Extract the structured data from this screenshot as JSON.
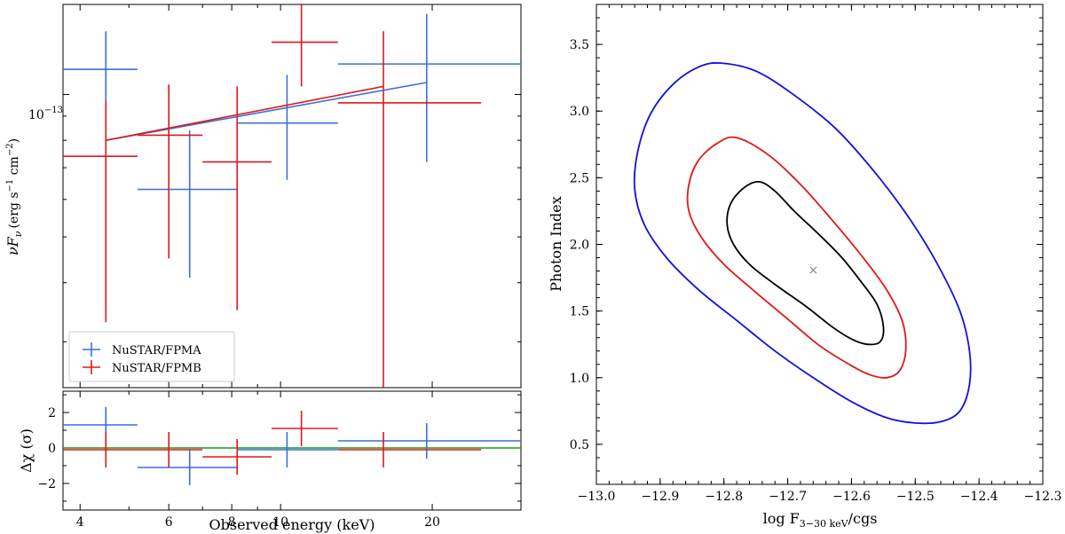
{
  "colors": {
    "fpma": "#3a6fd8",
    "fpmb": "#e01818",
    "model": "#9a2a4a",
    "zero_line": "#1a9a1a",
    "contour_inner": "#000000",
    "contour_mid": "#e01818",
    "contour_outer": "#1010e0",
    "best_fit": "#888888"
  },
  "chart_data": [
    {
      "type": "scatter",
      "panel": "spectrum",
      "title": "",
      "xscale": "log",
      "yscale": "log",
      "xlim": [
        3.7,
        30
      ],
      "ylim": [
        2.4e-14,
        1.55e-13
      ],
      "x_ticks": [
        4,
        6,
        8,
        10,
        20
      ],
      "x_tick_labels": [
        "",
        "",
        "",
        "",
        ""
      ],
      "y_ticks": [
        1e-13
      ],
      "y_tick_labels": [
        "10",
        "−13"
      ],
      "ylabel": "νF",
      "ylabel_sub": "ν",
      "ylabel_units": "(erg s",
      "ylabel_sup1": "−1",
      "ylabel_mid": " cm",
      "ylabel_sup2": "−2",
      "ylabel_end": ")",
      "legend_position": "lower-left",
      "series": [
        {
          "name": "NuSTAR/FPMA",
          "color_key": "fpma",
          "points": [
            {
              "x": 4.5,
              "xlo": 3.7,
              "xhi": 5.2,
              "y": 1.13e-13,
              "ylo": 9.7e-14,
              "yhi": 1.36e-13
            },
            {
              "x": 6.6,
              "xlo": 5.2,
              "xhi": 8.2,
              "y": 6.3e-14,
              "ylo": 4.1e-14,
              "yhi": 8.4e-14
            },
            {
              "x": 10.3,
              "xlo": 8.2,
              "xhi": 13.0,
              "y": 8.7e-14,
              "ylo": 6.6e-14,
              "yhi": 1.1e-13
            },
            {
              "x": 19.5,
              "xlo": 13.0,
              "xhi": 30.0,
              "y": 1.16e-13,
              "ylo": 7.2e-14,
              "yhi": 1.48e-13
            }
          ]
        },
        {
          "name": "NuSTAR/FPMB",
          "color_key": "fpmb",
          "points": [
            {
              "x": 4.5,
              "xlo": 3.7,
              "xhi": 5.2,
              "y": 7.4e-14,
              "ylo": 3.3e-14,
              "yhi": 9.7e-14
            },
            {
              "x": 6.0,
              "xlo": 5.2,
              "xhi": 7.0,
              "y": 8.2e-14,
              "ylo": 4.5e-14,
              "yhi": 1.05e-13
            },
            {
              "x": 8.2,
              "xlo": 7.0,
              "xhi": 9.6,
              "y": 7.2e-14,
              "ylo": 3.5e-14,
              "yhi": 1.04e-13
            },
            {
              "x": 11.0,
              "xlo": 9.6,
              "xhi": 13.0,
              "y": 1.29e-13,
              "ylo": 1.04e-13,
              "yhi": 1.6e-13
            },
            {
              "x": 16.0,
              "xlo": 13.0,
              "xhi": 25.0,
              "y": 9.6e-14,
              "ylo": 2.4e-14,
              "yhi": 1.36e-13
            }
          ]
        }
      ],
      "models": [
        {
          "name": "FPMA model",
          "color_key": "fpma",
          "x": [
            4.5,
            19.5
          ],
          "y": [
            8e-14,
            1.06e-13
          ]
        },
        {
          "name": "FPMB model",
          "color_key": "fpmb",
          "x": [
            4.5,
            16.0
          ],
          "y": [
            8e-14,
            1.04e-13
          ]
        }
      ]
    },
    {
      "type": "scatter",
      "panel": "residuals",
      "xscale": "log",
      "xlim": [
        3.7,
        30
      ],
      "ylim": [
        -3.5,
        3.2
      ],
      "x_ticks": [
        4,
        6,
        8,
        10,
        20
      ],
      "x_tick_labels": [
        "4",
        "6",
        "8",
        "10",
        "20"
      ],
      "y_ticks": [
        -2,
        0,
        2
      ],
      "y_tick_labels": [
        "−2",
        "0",
        "2"
      ],
      "xlabel": "Observed energy (keV)",
      "ylabel": "Δχ (σ)",
      "zero_line_y": 0,
      "series": [
        {
          "name": "NuSTAR/FPMA",
          "color_key": "fpma",
          "points": [
            {
              "x": 4.5,
              "xlo": 3.7,
              "xhi": 5.2,
              "y": 1.3,
              "ylo": 0.2,
              "yhi": 2.3
            },
            {
              "x": 6.6,
              "xlo": 5.2,
              "xhi": 8.2,
              "y": -1.1,
              "ylo": -2.1,
              "yhi": -0.1
            },
            {
              "x": 10.3,
              "xlo": 8.2,
              "xhi": 13.0,
              "y": -0.1,
              "ylo": -1.1,
              "yhi": 0.9
            },
            {
              "x": 19.5,
              "xlo": 13.0,
              "xhi": 30.0,
              "y": 0.4,
              "ylo": -0.6,
              "yhi": 1.4
            }
          ]
        },
        {
          "name": "NuSTAR/FPMB",
          "color_key": "fpmb",
          "points": [
            {
              "x": 4.5,
              "xlo": 3.7,
              "xhi": 5.2,
              "y": -0.1,
              "ylo": -1.1,
              "yhi": 0.9
            },
            {
              "x": 6.0,
              "xlo": 5.2,
              "xhi": 7.0,
              "y": -0.1,
              "ylo": -1.1,
              "yhi": 0.9
            },
            {
              "x": 8.2,
              "xlo": 7.0,
              "xhi": 9.6,
              "y": -0.5,
              "ylo": -1.5,
              "yhi": 0.5
            },
            {
              "x": 11.0,
              "xlo": 9.6,
              "xhi": 13.0,
              "y": 1.1,
              "ylo": 0.1,
              "yhi": 2.1
            },
            {
              "x": 16.0,
              "xlo": 13.0,
              "xhi": 25.0,
              "y": -0.1,
              "ylo": -1.1,
              "yhi": 0.9
            }
          ]
        }
      ]
    },
    {
      "type": "line",
      "panel": "contours",
      "title": "",
      "xlim": [
        -13.0,
        -12.3
      ],
      "ylim": [
        0.2,
        3.8
      ],
      "x_ticks": [
        -13.0,
        -12.9,
        -12.8,
        -12.7,
        -12.6,
        -12.5,
        -12.4,
        -12.3
      ],
      "x_tick_labels": [
        "−13.0",
        "−12.9",
        "−12.8",
        "−12.7",
        "−12.6",
        "−12.5",
        "−12.4",
        "−12.3"
      ],
      "y_ticks": [
        0.5,
        1.0,
        1.5,
        2.0,
        2.5,
        3.0,
        3.5
      ],
      "y_tick_labels": [
        "0.5",
        "1.0",
        "1.5",
        "2.0",
        "2.5",
        "3.0",
        "3.5"
      ],
      "xlabel_prefix": "log F",
      "xlabel_sub": "3−30 keV",
      "xlabel_suffix": "/cgs",
      "ylabel": "Photon Index",
      "best_fit": {
        "x": -12.66,
        "y": 1.81,
        "marker": "×"
      },
      "contours": [
        {
          "name": "inner",
          "color_key": "contour_inner",
          "points": [
            [
              -12.745,
              2.47
            ],
            [
              -12.77,
              2.42
            ],
            [
              -12.79,
              2.3
            ],
            [
              -12.795,
              2.15
            ],
            [
              -12.785,
              2.0
            ],
            [
              -12.76,
              1.85
            ],
            [
              -12.72,
              1.7
            ],
            [
              -12.67,
              1.53
            ],
            [
              -12.63,
              1.38
            ],
            [
              -12.6,
              1.29
            ],
            [
              -12.575,
              1.25
            ],
            [
              -12.555,
              1.27
            ],
            [
              -12.55,
              1.38
            ],
            [
              -12.56,
              1.55
            ],
            [
              -12.585,
              1.72
            ],
            [
              -12.615,
              1.9
            ],
            [
              -12.65,
              2.07
            ],
            [
              -12.69,
              2.25
            ],
            [
              -12.72,
              2.4
            ],
            [
              -12.745,
              2.47
            ]
          ]
        },
        {
          "name": "mid",
          "color_key": "contour_mid",
          "points": [
            [
              -12.78,
              2.8
            ],
            [
              -12.81,
              2.76
            ],
            [
              -12.84,
              2.63
            ],
            [
              -12.855,
              2.45
            ],
            [
              -12.855,
              2.25
            ],
            [
              -12.835,
              2.05
            ],
            [
              -12.8,
              1.85
            ],
            [
              -12.75,
              1.64
            ],
            [
              -12.7,
              1.44
            ],
            [
              -12.65,
              1.24
            ],
            [
              -12.6,
              1.09
            ],
            [
              -12.57,
              1.02
            ],
            [
              -12.545,
              1.0
            ],
            [
              -12.525,
              1.05
            ],
            [
              -12.515,
              1.2
            ],
            [
              -12.52,
              1.42
            ],
            [
              -12.545,
              1.66
            ],
            [
              -12.585,
              1.92
            ],
            [
              -12.63,
              2.18
            ],
            [
              -12.68,
              2.45
            ],
            [
              -12.73,
              2.67
            ],
            [
              -12.78,
              2.8
            ]
          ]
        },
        {
          "name": "outer",
          "color_key": "contour_outer",
          "points": [
            [
              -12.805,
              3.36
            ],
            [
              -12.84,
              3.33
            ],
            [
              -12.88,
              3.2
            ],
            [
              -12.915,
              2.98
            ],
            [
              -12.935,
              2.7
            ],
            [
              -12.94,
              2.42
            ],
            [
              -12.925,
              2.15
            ],
            [
              -12.89,
              1.9
            ],
            [
              -12.84,
              1.66
            ],
            [
              -12.78,
              1.43
            ],
            [
              -12.72,
              1.2
            ],
            [
              -12.66,
              1.0
            ],
            [
              -12.6,
              0.82
            ],
            [
              -12.545,
              0.7
            ],
            [
              -12.5,
              0.66
            ],
            [
              -12.46,
              0.67
            ],
            [
              -12.43,
              0.75
            ],
            [
              -12.415,
              0.95
            ],
            [
              -12.415,
              1.2
            ],
            [
              -12.43,
              1.5
            ],
            [
              -12.465,
              1.85
            ],
            [
              -12.51,
              2.2
            ],
            [
              -12.565,
              2.55
            ],
            [
              -12.625,
              2.87
            ],
            [
              -12.69,
              3.12
            ],
            [
              -12.75,
              3.3
            ],
            [
              -12.805,
              3.36
            ]
          ]
        }
      ]
    }
  ]
}
